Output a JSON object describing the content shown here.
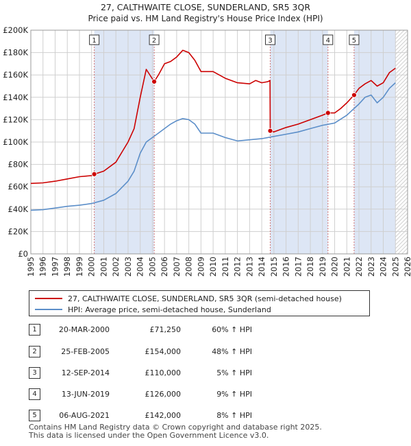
{
  "title_line1": "27, CALTHWAITE CLOSE, SUNDERLAND, SR5 3QR",
  "title_line2": "Price paid vs. HM Land Registry's House Price Index (HPI)",
  "colors": {
    "property": "#cc0000",
    "hpi": "#5b8ec9",
    "shade": "#dde6f5",
    "marker_line": "#d07070"
  },
  "legend": {
    "property": "27, CALTHWAITE CLOSE, SUNDERLAND, SR5 3QR (semi-detached house)",
    "hpi": "HPI: Average price, semi-detached house, Sunderland"
  },
  "sales": [
    {
      "num": "1",
      "date": "20-MAR-2000",
      "price": "£71,250",
      "hpi": "60% ↑ HPI"
    },
    {
      "num": "2",
      "date": "25-FEB-2005",
      "price": "£154,000",
      "hpi": "48% ↑ HPI"
    },
    {
      "num": "3",
      "date": "12-SEP-2014",
      "price": "£110,000",
      "hpi": "5% ↑ HPI"
    },
    {
      "num": "4",
      "date": "13-JUN-2019",
      "price": "£126,000",
      "hpi": "9% ↑ HPI"
    },
    {
      "num": "5",
      "date": "06-AUG-2021",
      "price": "£142,000",
      "hpi": "8% ↑ HPI"
    }
  ],
  "footer_line1": "Contains HM Land Registry data © Crown copyright and database right 2025.",
  "footer_line2": "This data is licensed under the Open Government Licence v3.0.",
  "chart_data": {
    "type": "line",
    "xlim": [
      1995,
      2026
    ],
    "ylim": [
      0,
      200000
    ],
    "x_ticks": [
      "1995",
      "1996",
      "1997",
      "1998",
      "1999",
      "2000",
      "2001",
      "2002",
      "2003",
      "2004",
      "2005",
      "2006",
      "2007",
      "2008",
      "2009",
      "2010",
      "2011",
      "2012",
      "2013",
      "2014",
      "2015",
      "2016",
      "2017",
      "2018",
      "2019",
      "2020",
      "2021",
      "2022",
      "2023",
      "2024",
      "2025",
      "2026"
    ],
    "y_ticks": [
      {
        "value": 0,
        "label": "£0"
      },
      {
        "value": 20000,
        "label": "£20K"
      },
      {
        "value": 40000,
        "label": "£40K"
      },
      {
        "value": 60000,
        "label": "£60K"
      },
      {
        "value": 80000,
        "label": "£80K"
      },
      {
        "value": 100000,
        "label": "£100K"
      },
      {
        "value": 120000,
        "label": "£120K"
      },
      {
        "value": 140000,
        "label": "£140K"
      },
      {
        "value": 160000,
        "label": "£160K"
      },
      {
        "value": 180000,
        "label": "£180K"
      },
      {
        "value": 200000,
        "label": "£200K"
      }
    ],
    "grid": true,
    "forecast_hatch_from": 2025.0,
    "shaded_spans": [
      [
        2000.22,
        2005.15
      ],
      [
        2014.7,
        2019.45
      ],
      [
        2021.6,
        2025.0
      ]
    ],
    "sales_markers": [
      {
        "label": "1",
        "x": 2000.22,
        "y": 71250
      },
      {
        "label": "2",
        "x": 2005.15,
        "y": 154000
      },
      {
        "label": "3",
        "x": 2014.7,
        "y": 110000
      },
      {
        "label": "4",
        "x": 2019.45,
        "y": 126000
      },
      {
        "label": "5",
        "x": 2021.6,
        "y": 142000
      }
    ],
    "series": [
      {
        "name": "27, CALTHWAITE CLOSE, SUNDERLAND, SR5 3QR (semi-detached house)",
        "x": [
          1995.0,
          1996.0,
          1997.0,
          1998.0,
          1999.0,
          2000.0,
          2000.22,
          2001.0,
          2002.0,
          2003.0,
          2003.5,
          2004.0,
          2004.5,
          2005.15,
          2005.5,
          2006.0,
          2006.5,
          2007.0,
          2007.5,
          2008.0,
          2008.5,
          2009.0,
          2010.0,
          2011.0,
          2012.0,
          2013.0,
          2013.5,
          2014.0,
          2014.5,
          2014.68,
          2014.7,
          2015.0,
          2016.0,
          2017.0,
          2018.0,
          2019.0,
          2019.45,
          2020.0,
          2020.5,
          2021.0,
          2021.6,
          2022.0,
          2022.5,
          2023.0,
          2023.5,
          2024.0,
          2024.5,
          2025.0
        ],
        "y": [
          63000,
          63500,
          65000,
          67000,
          69000,
          70000,
          71250,
          74000,
          82000,
          100000,
          112000,
          140000,
          165000,
          154000,
          160000,
          170000,
          172000,
          176000,
          182000,
          180000,
          173000,
          163000,
          163000,
          157000,
          153000,
          152000,
          155000,
          153000,
          154000,
          155000,
          110000,
          109000,
          113000,
          116000,
          120000,
          124000,
          126000,
          126000,
          130000,
          135000,
          142000,
          148000,
          152000,
          155000,
          150000,
          153000,
          162000,
          166000
        ]
      },
      {
        "name": "HPI: Average price, semi-detached house, Sunderland",
        "x": [
          1995.0,
          1996.0,
          1997.0,
          1998.0,
          1999.0,
          2000.0,
          2001.0,
          2002.0,
          2003.0,
          2003.5,
          2004.0,
          2004.5,
          2005.0,
          2005.5,
          2006.0,
          2006.5,
          2007.0,
          2007.5,
          2008.0,
          2008.5,
          2009.0,
          2010.0,
          2011.0,
          2012.0,
          2013.0,
          2014.0,
          2015.0,
          2016.0,
          2017.0,
          2018.0,
          2019.0,
          2020.0,
          2021.0,
          2022.0,
          2022.5,
          2023.0,
          2023.5,
          2024.0,
          2024.5,
          2025.0
        ],
        "y": [
          39000,
          39500,
          41000,
          42500,
          43500,
          45000,
          48000,
          54000,
          65000,
          74000,
          90000,
          100000,
          104000,
          108000,
          112000,
          116000,
          119000,
          121000,
          120000,
          116000,
          108000,
          108000,
          104000,
          101000,
          102000,
          103000,
          105000,
          107000,
          109000,
          112000,
          115000,
          117000,
          124000,
          134000,
          140000,
          142000,
          135000,
          140000,
          148000,
          153000
        ]
      }
    ]
  }
}
